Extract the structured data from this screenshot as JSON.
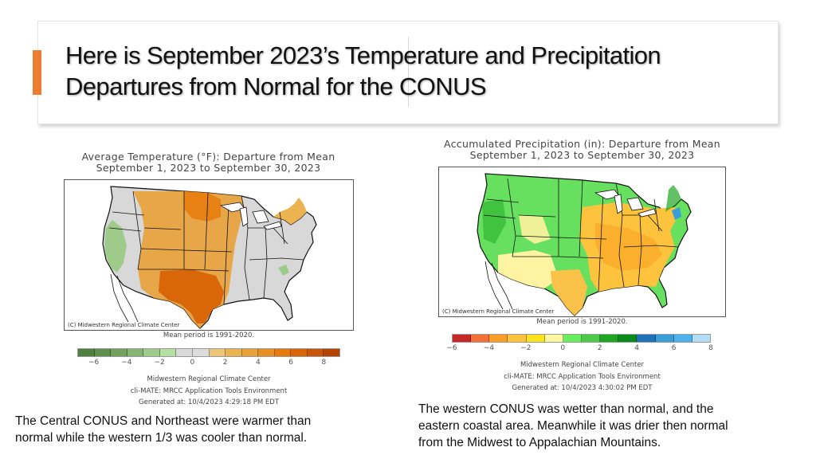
{
  "slide": {
    "title_lines": [
      "Here is September 2023’s  Temperature and Precipitation",
      "Departures from Normal for the CONUS"
    ],
    "accent_color": "#ed7d31"
  },
  "temperature_map": {
    "title_line1": "Average Temperature (°F): Departure from Mean",
    "title_line2": "September 1, 2023 to September 30, 2023",
    "copyright": "(C) Midwestern Regional Climate Center",
    "mean_period": "Mean period is 1991-2020.",
    "legend": {
      "ticks": [
        "-6",
        "-4",
        "-2",
        "0",
        "2",
        "4",
        "6",
        "8"
      ],
      "range": [
        -7,
        9
      ],
      "colors": [
        "#4d7f3f",
        "#5e8f4c",
        "#72a15e",
        "#86b473",
        "#9fcb8a",
        "#b5e0a2",
        "#d9d9d9",
        "#dcdcdc",
        "#ecc577",
        "#ebb450",
        "#e9a23a",
        "#e88f24",
        "#e67a0a",
        "#d9670a",
        "#c95608",
        "#b54404"
      ]
    },
    "credits": [
      "Midwestern Regional Climate Center",
      "cli-MATE: MRCC Application Tools Environment",
      "Generated at: 10/4/2023 4:29:18 PM EDT"
    ],
    "caption_lines": [
      "The Central CONUS and Northeast were warmer than",
      "normal while the western 1/3 was cooler than normal."
    ]
  },
  "precipitation_map": {
    "title_line1": "Accumulated Precipitation (in): Departure from Mean",
    "title_line2": "September 1, 2023 to September 30, 2023",
    "copyright": "(C) Midwestern Regional Climate Center",
    "mean_period": "Mean period is 1991-2020.",
    "legend": {
      "ticks": [
        "-6",
        "-4",
        "-2",
        "0",
        "2",
        "4",
        "6",
        "8"
      ],
      "range": [
        -6,
        8
      ],
      "colors": [
        "#c62828",
        "#f47036",
        "#f99d27",
        "#fdc33c",
        "#fde31b",
        "#fef6a0",
        "#66f05e",
        "#4dc94a",
        "#1ea622",
        "#0a8a18",
        "#1f72b8",
        "#3a9ed9",
        "#4fb2ed",
        "#b3dcf7"
      ]
    },
    "credits": [
      "Midwestern Regional Climate Center",
      "cli-MATE: MRCC Application Tools Environment",
      "Generated at: 10/4/2023 4:30:02 PM EDT"
    ],
    "caption_lines": [
      "The western CONUS was wetter than normal,  and the",
      "eastern coastal area. Meanwhile it was drier then normal",
      "from the Midwest to Appalachian Mountains."
    ]
  }
}
